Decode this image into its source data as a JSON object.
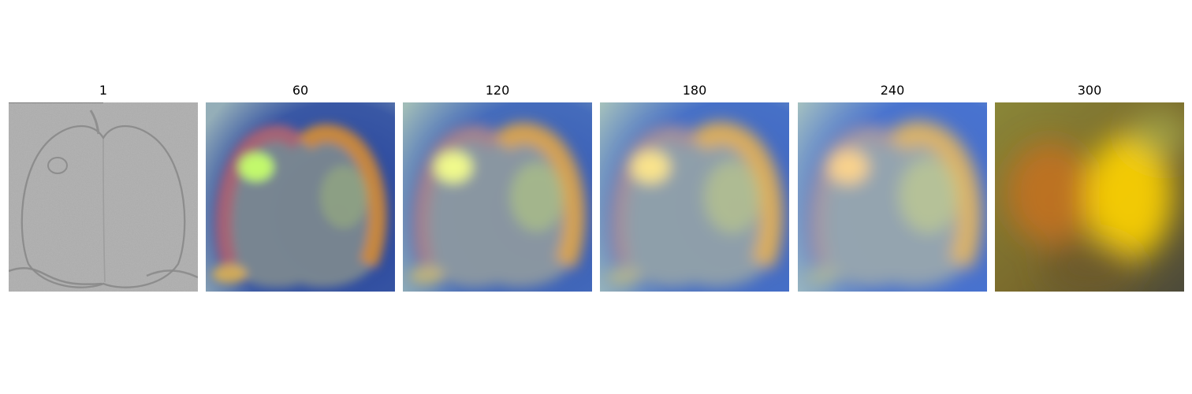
{
  "panels": [
    {
      "title": "1",
      "style": "edge-detail",
      "colors": {
        "base": "#a9a9a9",
        "edge": "#7f7f7f"
      }
    },
    {
      "title": "60",
      "style": "smoothed-apple",
      "colors": {
        "bg": "#2f4fa0",
        "left": "#b45a6e",
        "right": "#d98a2c",
        "highlight": "#c6ff6a",
        "mid": "#7f8b8f"
      }
    },
    {
      "title": "120",
      "style": "smoothed-apple",
      "colors": {
        "bg": "#3b64b8",
        "left": "#b07a86",
        "right": "#e2a444",
        "highlight": "#f6ff8a",
        "mid": "#8f9aa0"
      }
    },
    {
      "title": "180",
      "style": "smoothed-apple",
      "colors": {
        "bg": "#3d69c4",
        "left": "#b28490",
        "right": "#e7b050",
        "highlight": "#ffe78a",
        "mid": "#95a3a8"
      }
    },
    {
      "title": "240",
      "style": "smoothed-apple",
      "colors": {
        "bg": "#3f6ccd",
        "left": "#b58c98",
        "right": "#e8b65a",
        "highlight": "#ffd58b",
        "mid": "#9aa8ad"
      }
    },
    {
      "title": "300",
      "style": "blurred-warm",
      "colors": {
        "bg": "#8a8638",
        "left": "#c7721f",
        "right": "#ffd400",
        "mid": "#6c5a2a"
      }
    }
  ]
}
